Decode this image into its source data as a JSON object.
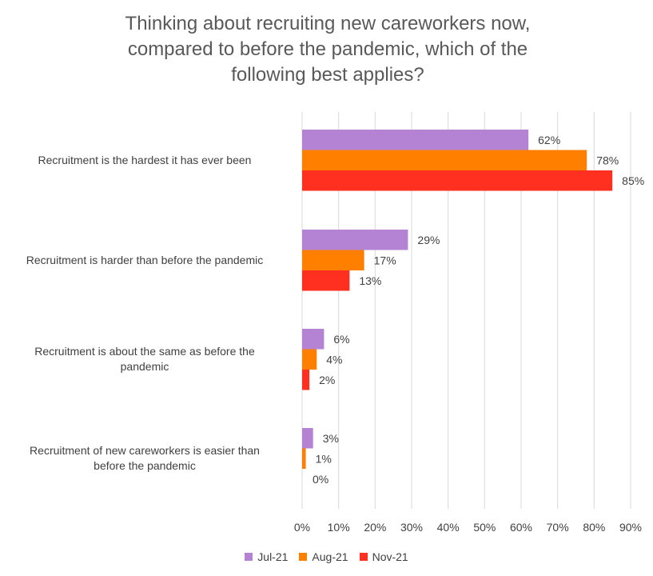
{
  "chart_data": {
    "type": "bar",
    "orientation": "horizontal",
    "title_lines": [
      "Thinking about recruiting new careworkers now,",
      "compared to before the pandemic, which of the",
      "following best applies?"
    ],
    "categories": [
      [
        "Recruitment is the hardest it has ever been"
      ],
      [
        "Recruitment is harder than before the pandemic"
      ],
      [
        "Recruitment is about the same as before the",
        "pandemic"
      ],
      [
        "Recruitment of new careworkers is easier than",
        "before the pandemic"
      ]
    ],
    "series": [
      {
        "name": "Jul-21",
        "color": "#b583d4",
        "values": [
          62,
          29,
          6,
          3
        ],
        "labels": [
          "62%",
          "29%",
          "6%",
          "3%"
        ]
      },
      {
        "name": "Aug-21",
        "color": "#ff8000",
        "values": [
          78,
          17,
          4,
          1
        ],
        "labels": [
          "78%",
          "17%",
          "4%",
          "1%"
        ]
      },
      {
        "name": "Nov-21",
        "color": "#ff3020",
        "values": [
          85,
          13,
          2,
          0
        ],
        "labels": [
          "85%",
          "13%",
          "2%",
          "0%"
        ]
      }
    ],
    "xlim": [
      0,
      90
    ],
    "xticks": [
      "0%",
      "10%",
      "20%",
      "30%",
      "40%",
      "50%",
      "60%",
      "70%",
      "80%",
      "90%"
    ],
    "grid": "vertical",
    "legend_position": "bottom"
  }
}
